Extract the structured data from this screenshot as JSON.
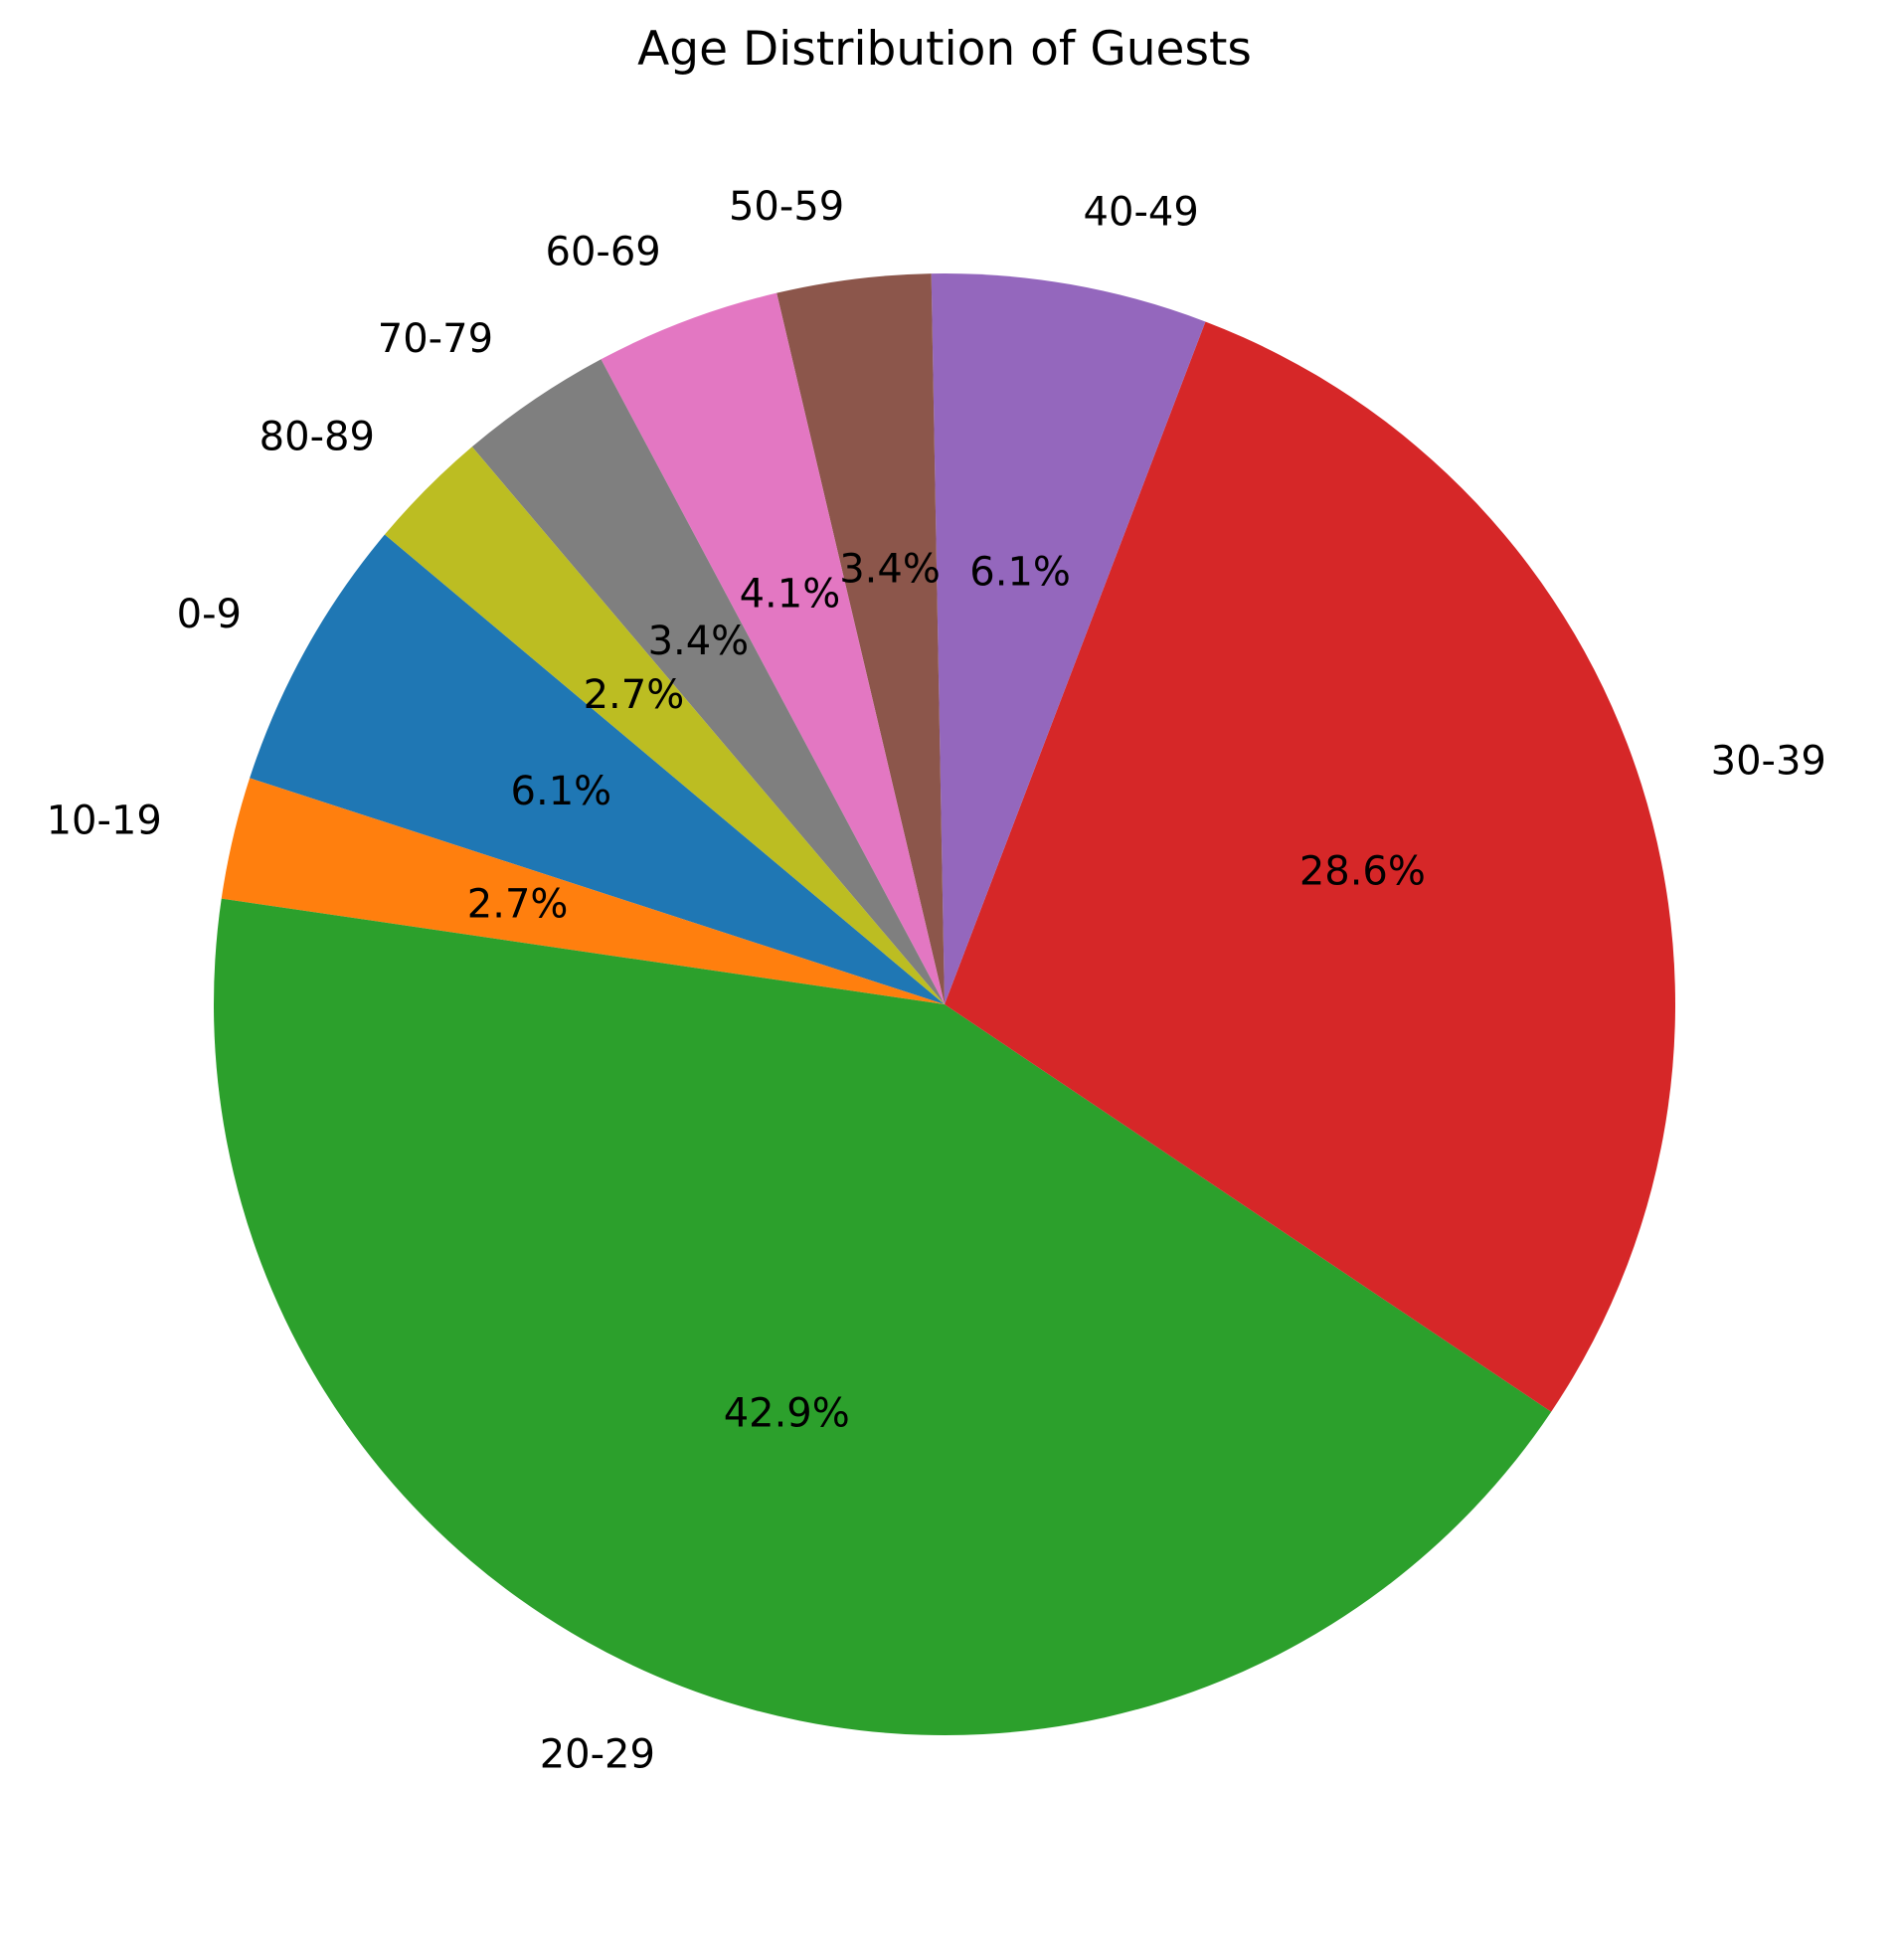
{
  "chart_data": {
    "type": "pie",
    "title": "Age Distribution of Guests",
    "start_angle_deg": 140,
    "direction": "counterclockwise",
    "slices": [
      {
        "label": "0-9",
        "value": 6.1,
        "pct_label": "6.1%",
        "color": "#1f77b4"
      },
      {
        "label": "10-19",
        "value": 2.7,
        "pct_label": "2.7%",
        "color": "#ff7f0e"
      },
      {
        "label": "20-29",
        "value": 42.9,
        "pct_label": "42.9%",
        "color": "#2ca02c"
      },
      {
        "label": "30-39",
        "value": 28.6,
        "pct_label": "28.6%",
        "color": "#d62728"
      },
      {
        "label": "40-49",
        "value": 6.1,
        "pct_label": "6.1%",
        "color": "#9467bd"
      },
      {
        "label": "50-59",
        "value": 3.4,
        "pct_label": "3.4%",
        "color": "#8c564b"
      },
      {
        "label": "60-69",
        "value": 4.1,
        "pct_label": "4.1%",
        "color": "#e377c2"
      },
      {
        "label": "70-79",
        "value": 3.4,
        "pct_label": "3.4%",
        "color": "#7f7f7f"
      },
      {
        "label": "80-89",
        "value": 2.7,
        "pct_label": "2.7%",
        "color": "#bcbd22"
      }
    ]
  }
}
